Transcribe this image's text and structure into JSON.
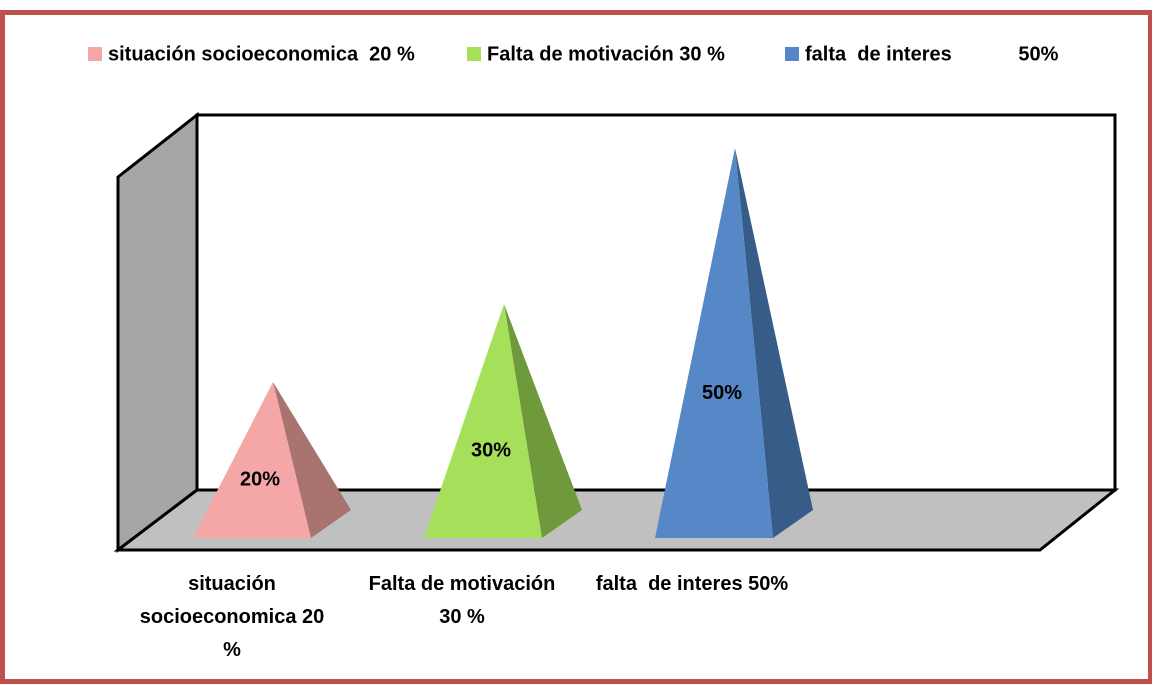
{
  "chart_data": {
    "type": "bar",
    "legend": [
      "situación socioeconomica  20 %",
      "Falta de motivación 30 %",
      "falta  de interes            50%"
    ],
    "categories": [
      "situación socioeconomica 20 %",
      "Falta de motivación 30 %",
      "falta  de interes 50%"
    ],
    "values": [
      20,
      30,
      50
    ],
    "value_labels": [
      "20%",
      "30%",
      "50%"
    ],
    "colors": [
      "#f4a7a6",
      "#a6e05a",
      "#5688c7"
    ],
    "side_colors": [
      "#a97470",
      "#6f9a3c",
      "#385c88"
    ]
  }
}
